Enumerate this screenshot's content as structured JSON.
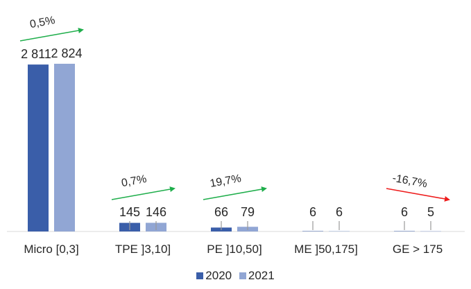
{
  "chart_data": {
    "type": "bar",
    "categories": [
      "Micro  [0,3]",
      "TPE ]3,10]",
      "PE ]10,50]",
      "ME ]50,175]",
      "GE > 175"
    ],
    "series": [
      {
        "name": "2020",
        "color": "#3a5ea9",
        "values": [
          2811,
          145,
          66,
          6,
          6
        ],
        "labels": [
          "2 811",
          "145",
          "66",
          "6",
          "6"
        ]
      },
      {
        "name": "2021",
        "color": "#91a6d4",
        "values": [
          2824,
          146,
          79,
          6,
          5
        ],
        "labels": [
          "2 824",
          "146",
          "79",
          "6",
          "5"
        ]
      }
    ],
    "annotations": [
      {
        "category": "Micro  [0,3]",
        "text": "0,5%",
        "trend": "up",
        "color": "#1fae4b"
      },
      {
        "category": "TPE ]3,10]",
        "text": "0,7%",
        "trend": "up",
        "color": "#1fae4b"
      },
      {
        "category": "PE ]10,50]",
        "text": "19,7%",
        "trend": "up",
        "color": "#1fae4b"
      },
      {
        "category": "GE > 175",
        "text": "-16,7%",
        "trend": "down",
        "color": "#ee1c1c"
      }
    ],
    "ylim": [
      0,
      2824
    ],
    "grid": false,
    "legend_position": "bottom"
  }
}
